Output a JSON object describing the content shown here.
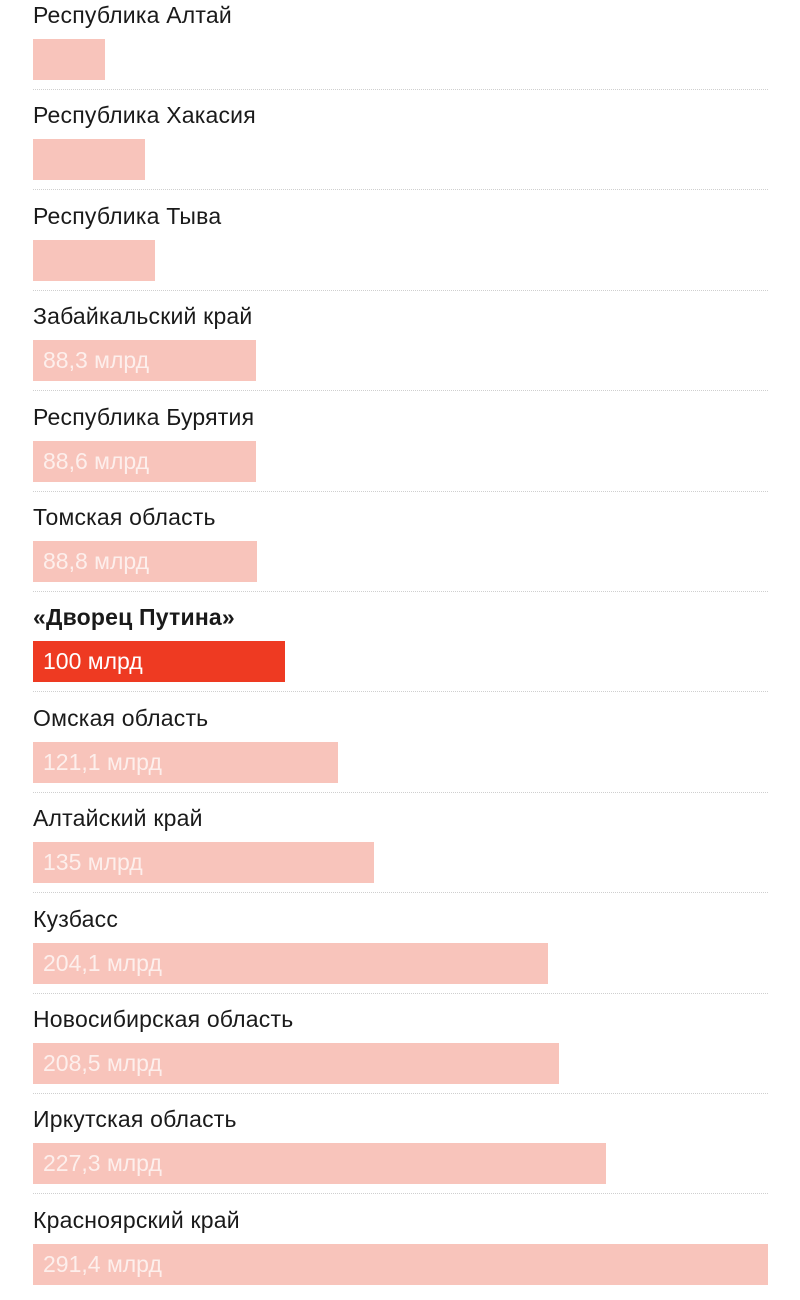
{
  "colors": {
    "bar": "#f8c4bb",
    "highlight_bar": "#ee3a22"
  },
  "chart_data": {
    "type": "bar",
    "orientation": "horizontal",
    "title": "",
    "xlabel": "",
    "ylabel": "",
    "unit": "млрд",
    "xlim": [
      0,
      291.4
    ],
    "grid": false,
    "legend": "none",
    "highlight_index": 6,
    "categories": [
      "Республика Алтай",
      "Республика Хакасия",
      "Республика Тыва",
      "Забайкальский край",
      "Республика Бурятия",
      "Томская область",
      "«Дворец Путина»",
      "Омская область",
      "Алтайский край",
      "Кузбасс",
      "Новосибирская область",
      "Иркутская область",
      "Красноярский край"
    ],
    "values": [
      28.6,
      44.5,
      48.3,
      88.3,
      88.6,
      88.8,
      100,
      121.1,
      135,
      204.1,
      208.5,
      227.3,
      291.4
    ],
    "value_labels": [
      "",
      "",
      "",
      "88,3 млрд",
      "88,6 млрд",
      "88,8 млрд",
      "100 млрд",
      "121,1 млрд",
      "135 млрд",
      "204,1 млрд",
      "208,5 млрд",
      "227,3 млрд",
      "291,4 млрд"
    ]
  }
}
